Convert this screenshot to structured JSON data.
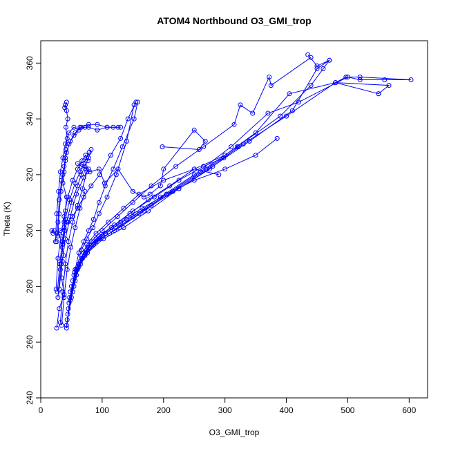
{
  "chart_data": {
    "type": "line",
    "title": "ATOM4 Northbound O3_GMI_trop",
    "xlabel": "O3_GMI_trop",
    "ylabel": "Theta (K)",
    "xlim": [
      0,
      630
    ],
    "ylim": [
      240,
      368
    ],
    "xticks": [
      0,
      100,
      200,
      300,
      400,
      500,
      600
    ],
    "yticks": [
      240,
      260,
      280,
      300,
      320,
      340,
      360
    ],
    "grid": false,
    "legend": "none",
    "series_color": "#0000ff",
    "marker": "open-circle",
    "series": [
      {
        "x": [
          26,
          30,
          38,
          34,
          33,
          37,
          35,
          36,
          39,
          38,
          40,
          42,
          36,
          38,
          40,
          41,
          43,
          41,
          44,
          42,
          40,
          39,
          42
        ],
        "y": [
          265,
          272,
          277,
          283,
          288,
          291,
          294,
          296,
          300,
          303,
          307,
          312,
          317,
          321,
          325,
          329,
          333,
          337,
          340,
          343,
          345,
          344,
          346
        ]
      },
      {
        "x": [
          42,
          48,
          55,
          62,
          70,
          78,
          86,
          95,
          105,
          118,
          133,
          152,
          158
        ],
        "y": [
          265,
          275,
          285,
          292,
          296,
          300,
          304,
          310,
          316,
          322,
          330,
          340,
          346
        ]
      },
      {
        "x": [
          42,
          50,
          58,
          66,
          75,
          85,
          95,
          108,
          123,
          140,
          152
        ],
        "y": [
          266,
          276,
          286,
          293,
          297,
          301,
          306,
          312,
          320,
          332,
          345
        ]
      },
      {
        "x": [
          43,
          52,
          62,
          75,
          90,
          110,
          135,
          160,
          200,
          250,
          300,
          350,
          405,
          480,
          550
        ],
        "y": [
          268,
          278,
          288,
          295,
          299,
          303,
          308,
          313,
          318,
          322,
          327,
          335,
          349,
          353,
          349
        ]
      },
      {
        "x": [
          44,
          54,
          66,
          82,
          100,
          125,
          150,
          180,
          220,
          265,
          315,
          325,
          345,
          372,
          375,
          440
        ],
        "y": [
          270,
          280,
          290,
          296,
          300,
          305,
          310,
          316,
          323,
          330,
          338,
          345,
          342,
          355,
          352,
          362
        ]
      },
      {
        "x": [
          45,
          56,
          70,
          90,
          115,
          145,
          175,
          210,
          250,
          290
        ],
        "y": [
          272,
          282,
          292,
          297,
          301,
          306,
          311,
          316,
          322,
          320
        ]
      },
      {
        "x": [
          46,
          58,
          75,
          95,
          120,
          150,
          185,
          225,
          265,
          298
        ],
        "y": [
          274,
          284,
          293,
          298,
          302,
          307,
          312,
          318,
          323,
          326
        ]
      },
      {
        "x": [
          47,
          60,
          78,
          100,
          130,
          165,
          205,
          250,
          300,
          350,
          385
        ],
        "y": [
          276,
          286,
          294,
          298,
          303,
          308,
          313,
          318,
          322,
          327,
          333
        ]
      },
      {
        "x": [
          48,
          62,
          82,
          105,
          140,
          180,
          225,
          275,
          322
        ],
        "y": [
          278,
          287,
          295,
          299,
          304,
          309,
          315,
          322,
          330
        ]
      },
      {
        "x": [
          50,
          65,
          86,
          112,
          150,
          195,
          250,
          310,
          370,
          420,
          500,
          520,
          560,
          603,
          520,
          497,
          480,
          567,
          550
        ],
        "y": [
          280,
          288,
          295,
          299,
          305,
          312,
          320,
          330,
          342,
          346,
          355,
          354,
          354,
          354,
          355,
          355,
          353,
          352,
          349
        ]
      },
      {
        "x": [
          52,
          68,
          90,
          120,
          160,
          205,
          260,
          320,
          390,
          440,
          460,
          470,
          450,
          435
        ],
        "y": [
          282,
          290,
          296,
          300,
          306,
          313,
          321,
          330,
          341,
          352,
          358,
          361,
          359,
          363
        ]
      },
      {
        "x": [
          54,
          72,
          96,
          128,
          168,
          215,
          270,
          330,
          400,
          480
        ],
        "y": [
          284,
          291,
          297,
          301,
          307,
          314,
          322,
          331,
          341,
          353
        ]
      },
      {
        "x": [
          56,
          76,
          102,
          135,
          175,
          225,
          280,
          340,
          410,
          450,
          470
        ],
        "y": [
          286,
          292,
          297,
          301,
          307,
          315,
          323,
          332,
          343,
          358,
          361
        ]
      },
      {
        "x": [
          22,
          18,
          20,
          26,
          32,
          38,
          44,
          52,
          60,
          70,
          82,
          96,
          114,
          130,
          142,
          155
        ],
        "y": [
          300,
          300,
          299,
          299,
          300,
          301,
          303,
          305,
          308,
          312,
          316,
          320,
          327,
          333,
          340,
          346
        ]
      },
      {
        "x": [
          28,
          30,
          33,
          36,
          40,
          46,
          54,
          64,
          78,
          92,
          108,
          118,
          130
        ],
        "y": [
          298,
          306,
          314,
          320,
          326,
          331,
          334,
          337,
          338,
          338,
          337,
          337,
          337
        ]
      },
      {
        "x": [
          26,
          28,
          30,
          34,
          38,
          42,
          48,
          56,
          66,
          78,
          92,
          108,
          126
        ],
        "y": [
          296,
          303,
          311,
          318,
          323,
          328,
          332,
          335,
          337,
          337,
          336,
          337,
          337
        ]
      },
      {
        "x": [
          24,
          26,
          29,
          32,
          36,
          40,
          46,
          54,
          62,
          72
        ],
        "y": [
          296,
          306,
          314,
          321,
          326,
          331,
          335,
          337,
          336,
          337
        ]
      },
      {
        "x": [
          30,
          35,
          40,
          48,
          58,
          70,
          78,
          66,
          60,
          74,
          80,
          95,
          104,
          126,
          150,
          168,
          178,
          195,
          200,
          250,
          268,
          258,
          198
        ],
        "y": [
          279,
          289,
          297,
          305,
          313,
          319,
          322,
          323,
          324,
          322,
          321,
          322,
          317,
          322,
          314,
          312,
          313,
          316,
          322,
          336,
          332,
          329,
          330
        ]
      },
      {
        "x": [
          28,
          32,
          36,
          42,
          50,
          60,
          66,
          72,
          78,
          82
        ],
        "y": [
          276,
          286,
          295,
          303,
          310,
          316,
          320,
          323,
          326,
          329
        ]
      },
      {
        "x": [
          27,
          31,
          35,
          40,
          47,
          56,
          64,
          70,
          74,
          79
        ],
        "y": [
          278,
          288,
          296,
          304,
          311,
          317,
          321,
          324,
          326,
          328
        ]
      },
      {
        "x": [
          25,
          28,
          33,
          38,
          44,
          52,
          60,
          67,
          73,
          77
        ],
        "y": [
          279,
          290,
          298,
          305,
          312,
          318,
          322,
          325,
          327,
          325
        ]
      },
      {
        "x": [
          32,
          36,
          40,
          45,
          52,
          60,
          68,
          75
        ],
        "y": [
          267,
          278,
          288,
          296,
          303,
          309,
          315,
          321
        ]
      },
      {
        "x": [
          34,
          38,
          43,
          49,
          56,
          64,
          72
        ],
        "y": [
          266,
          276,
          286,
          294,
          301,
          308,
          314
        ]
      }
    ]
  }
}
